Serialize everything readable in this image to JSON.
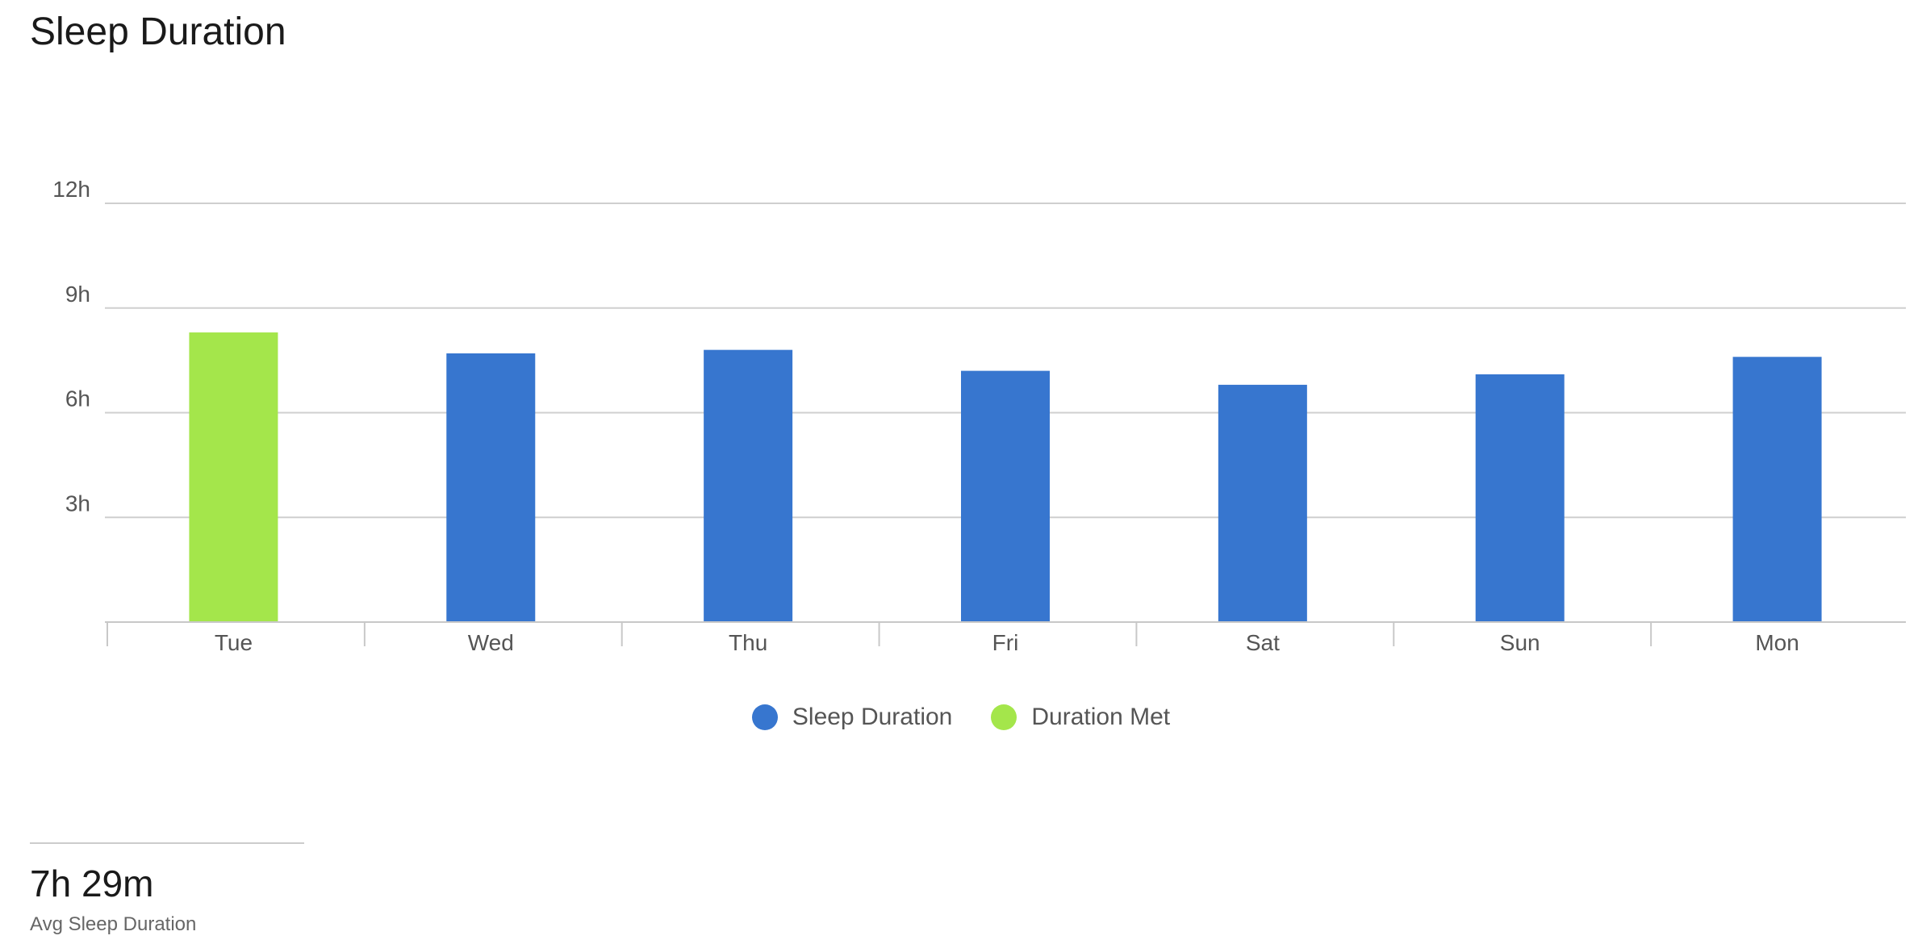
{
  "header": {
    "title": "Sleep Duration"
  },
  "chart_data": {
    "type": "bar",
    "categories": [
      "Tue",
      "Wed",
      "Thu",
      "Fri",
      "Sat",
      "Sun",
      "Mon"
    ],
    "values": [
      8.3,
      7.7,
      7.8,
      7.2,
      6.8,
      7.1,
      7.6
    ],
    "point_series": [
      "Duration Met",
      "Sleep Duration",
      "Sleep Duration",
      "Sleep Duration",
      "Sleep Duration",
      "Sleep Duration",
      "Sleep Duration"
    ],
    "ylim": [
      0,
      12
    ],
    "yticks": [
      3,
      6,
      9,
      12
    ],
    "ytick_labels": [
      "3h",
      "6h",
      "9h",
      "12h"
    ],
    "grid": true,
    "legend_position": "bottom",
    "series": [
      {
        "name": "Sleep Duration",
        "color": "#3776cf"
      },
      {
        "name": "Duration Met",
        "color": "#a4e64b"
      }
    ]
  },
  "summary": {
    "value": "7h 29m",
    "label": "Avg Sleep Duration"
  }
}
